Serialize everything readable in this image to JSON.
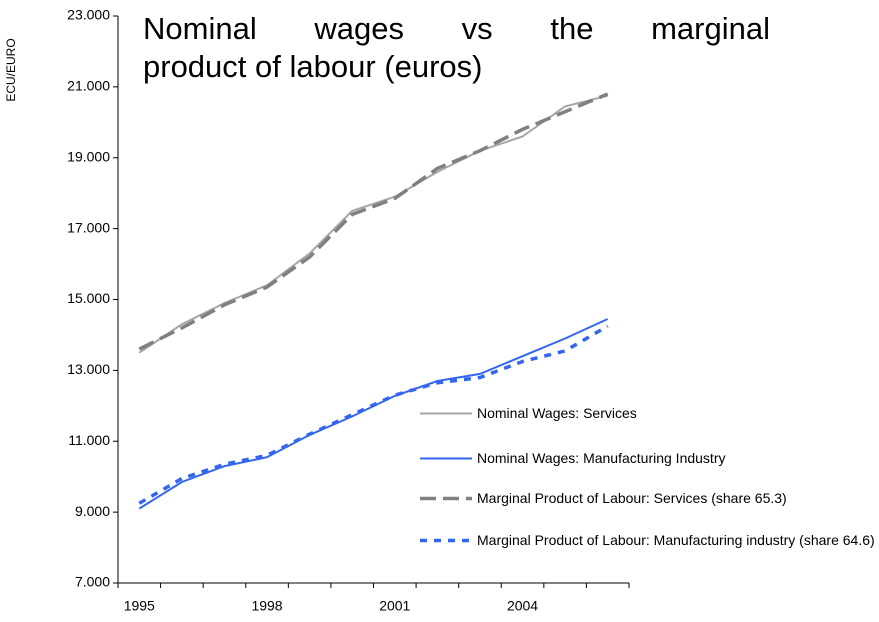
{
  "chart_data": {
    "type": "line",
    "title": "Nominal wages vs the marginal product of labour (euros)",
    "y_label": "ECU/EURO",
    "categories": [
      "1995",
      null,
      null,
      "1998",
      null,
      null,
      "2001",
      null,
      null,
      "2004",
      null,
      null
    ],
    "ylim": [
      7000,
      23000
    ],
    "yticks": [
      {
        "value": 7000,
        "label": "7.000"
      },
      {
        "value": 9000,
        "label": "9.000"
      },
      {
        "value": 11000,
        "label": "11.000"
      },
      {
        "value": 13000,
        "label": "13.000"
      },
      {
        "value": 15000,
        "label": "15.000"
      },
      {
        "value": 17000,
        "label": "17.000"
      },
      {
        "value": 19000,
        "label": "19.000"
      },
      {
        "value": 21000,
        "label": "21.000"
      },
      {
        "value": 23000,
        "label": "23.000"
      }
    ],
    "grid": false,
    "legend": "lower right",
    "series": [
      {
        "name": "Nominal Wages: Services",
        "color": "#a6a6a6",
        "linestyle": "solid",
        "values": [
          13500,
          14300,
          14900,
          15400,
          16300,
          17500,
          17900,
          18600,
          19200,
          19600,
          20450,
          20750
        ]
      },
      {
        "name": "Nominal Wages: Manufacturing Industry",
        "color": "#3366ee",
        "linestyle": "solid",
        "values": [
          9100,
          9850,
          10300,
          10550,
          11180,
          11700,
          12280,
          12700,
          12900,
          13400,
          13900,
          14450
        ]
      },
      {
        "name": "Marginal Product of Labour: Services (share 65.3)",
        "color": "#808080",
        "linestyle": "dashed",
        "values": [
          13600,
          14200,
          14850,
          15350,
          16200,
          17400,
          17850,
          18700,
          19200,
          19800,
          20300,
          20800
        ]
      },
      {
        "name": "Marginal Product of Labour: Manufacturing industry (share 64.6)",
        "color": "#3366ee",
        "linestyle": "dotted",
        "values": [
          9250,
          9950,
          10350,
          10600,
          11200,
          11750,
          12300,
          12650,
          12800,
          13250,
          13550,
          14250
        ]
      }
    ]
  }
}
